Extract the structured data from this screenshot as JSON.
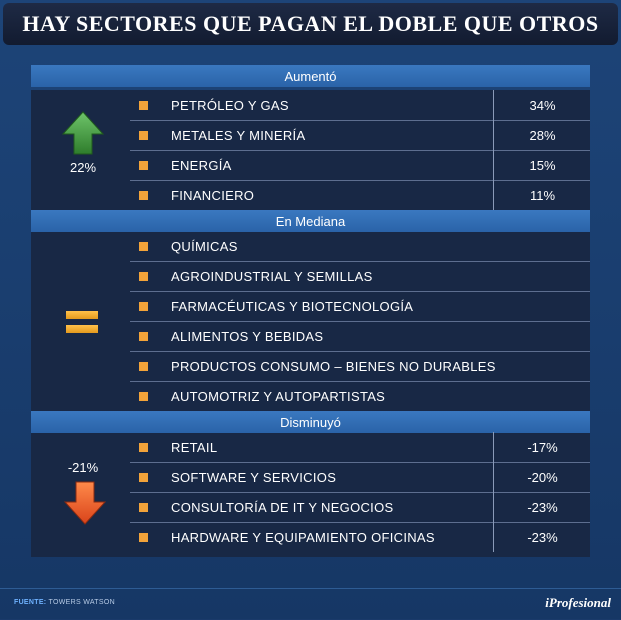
{
  "title": "HAY SECTORES QUE PAGAN EL DOBLE QUE OTROS",
  "chart_data": {
    "type": "table",
    "title": "HAY SECTORES QUE PAGAN EL DOBLE QUE OTROS",
    "groups": [
      {
        "name": "Aumentó",
        "summary": "22%",
        "rows": [
          {
            "label": "PETRÓLEO Y GAS",
            "value": "34%"
          },
          {
            "label": "METALES Y MINERÍA",
            "value": "28%"
          },
          {
            "label": "ENERGÍA",
            "value": "15%"
          },
          {
            "label": "FINANCIERO",
            "value": "11%"
          }
        ]
      },
      {
        "name": "En Mediana",
        "rows": [
          {
            "label": "QUÍMICAS"
          },
          {
            "label": "AGROINDUSTRIAL Y SEMILLAS"
          },
          {
            "label": "FARMACÉUTICAS Y BIOTECNOLOGÍA"
          },
          {
            "label": "ALIMENTOS Y BEBIDAS"
          },
          {
            "label": "PRODUCTOS CONSUMO – BIENES NO DURABLES"
          },
          {
            "label": "AUTOMOTRIZ Y AUTOPARTISTAS"
          }
        ]
      },
      {
        "name": "Disminuyó",
        "summary": "-21%",
        "rows": [
          {
            "label": "RETAIL",
            "value": "-17%"
          },
          {
            "label": "SOFTWARE Y SERVICIOS",
            "value": "-20%"
          },
          {
            "label": "CONSULTORÍA DE IT Y NEGOCIOS",
            "value": "-23%"
          },
          {
            "label": "HARDWARE Y EQUIPAMIENTO OFICINAS",
            "value": "-23%"
          }
        ]
      }
    ]
  },
  "icons": {
    "up": "up-arrow-icon",
    "equal": "equals-icon",
    "down": "down-arrow-icon"
  },
  "colors": {
    "accent": "#f2a33a",
    "up": "#3f9a3c",
    "down": "#e8521f",
    "header": "#2f6bb2"
  },
  "footer": {
    "source_label": "FUENTE:",
    "source_text": " TOWERS WATSON",
    "brand": "iProfesional"
  }
}
